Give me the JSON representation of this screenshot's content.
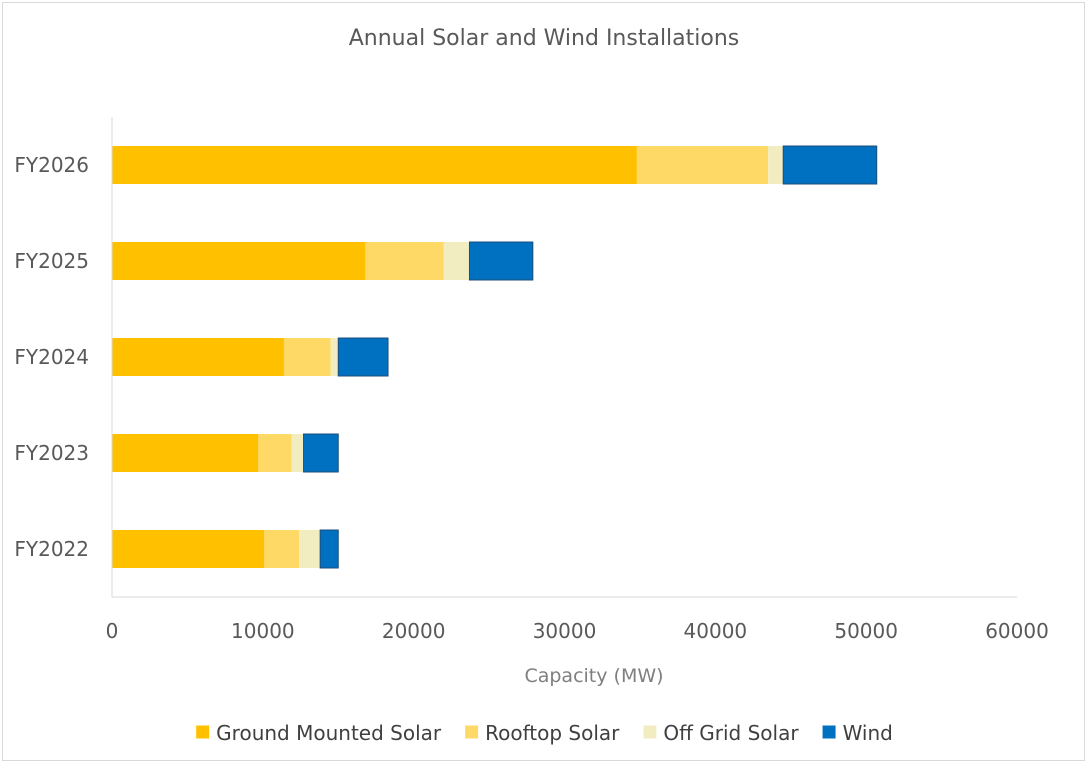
{
  "chart_data": {
    "type": "bar",
    "orientation": "horizontal",
    "stacked": true,
    "title": "Annual Solar and Wind Installations",
    "xlabel": "Capacity (MW)",
    "ylabel": "",
    "xlim": [
      0,
      60000
    ],
    "x_ticks": [
      "0",
      "10000",
      "20000",
      "30000",
      "40000",
      "50000",
      "60000"
    ],
    "categories": [
      "FY2026",
      "FY2025",
      "FY2024",
      "FY2023",
      "FY2022"
    ],
    "series": [
      {
        "name": "Ground Mounted Solar",
        "color": "#ffc000",
        "values": [
          34800,
          16800,
          11400,
          9700,
          10100
        ]
      },
      {
        "name": "Rooftop Solar",
        "color": "#ffd966",
        "values": [
          8700,
          5200,
          3100,
          2200,
          2300
        ]
      },
      {
        "name": "Off Grid Solar",
        "color": "#f2edc0",
        "values": [
          1000,
          1700,
          500,
          800,
          1400
        ]
      },
      {
        "name": "Wind",
        "color": "#0070c0",
        "values": [
          6200,
          4200,
          3300,
          2300,
          1200
        ]
      }
    ],
    "gridlines": false,
    "legend_position": "bottom"
  }
}
